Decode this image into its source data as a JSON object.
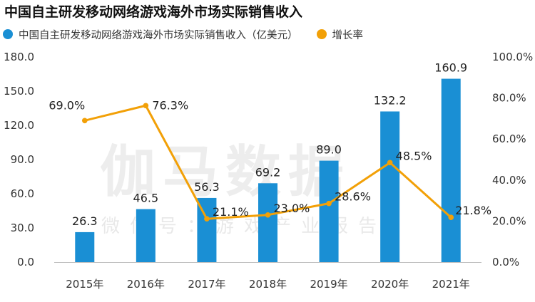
{
  "title": "中国自主研发移动网络游戏海外市场实际销售收入",
  "watermark": {
    "main": "伽马数据",
    "sub": "微信号：游戏产业报告"
  },
  "legend": [
    {
      "label": "中国自主研发移动网络游戏海外市场实际销售收入（亿美元）",
      "color": "#1a8fd4",
      "icon": "circle-icon"
    },
    {
      "label": "增长率",
      "color": "#f2a007",
      "icon": "circle-icon"
    }
  ],
  "chart_data": {
    "type": "bar",
    "categories": [
      "2015年",
      "2016年",
      "2017年",
      "2018年",
      "2019年",
      "2020年",
      "2021年"
    ],
    "series": [
      {
        "name": "中国自主研发移动网络游戏海外市场实际销售收入（亿美元）",
        "type": "bar",
        "axis": "left",
        "values": [
          26.3,
          46.5,
          56.3,
          69.2,
          89.0,
          132.2,
          160.9
        ],
        "labels": [
          "26.3",
          "46.5",
          "56.3",
          "69.2",
          "89.0",
          "132.2",
          "160.9"
        ],
        "color": "#1a8fd4"
      },
      {
        "name": "增长率",
        "type": "line",
        "axis": "right",
        "values": [
          69.0,
          76.3,
          21.1,
          23.0,
          28.6,
          48.5,
          21.8
        ],
        "labels": [
          "69.0%",
          "76.3%",
          "21.1%",
          "23.0%",
          "28.6%",
          "48.5%",
          "21.8%"
        ],
        "color": "#f2a007"
      }
    ],
    "y_left": {
      "min": 0,
      "max": 180,
      "ticks": [
        "0.0",
        "30.0",
        "60.0",
        "90.0",
        "120.0",
        "150.0",
        "180.0"
      ]
    },
    "y_right": {
      "min": 0,
      "max": 100,
      "ticks": [
        "0.0%",
        "20.0%",
        "40.0%",
        "60.0%",
        "80.0%",
        "100.0%"
      ]
    },
    "grid": false,
    "legend_position": "top-left"
  }
}
